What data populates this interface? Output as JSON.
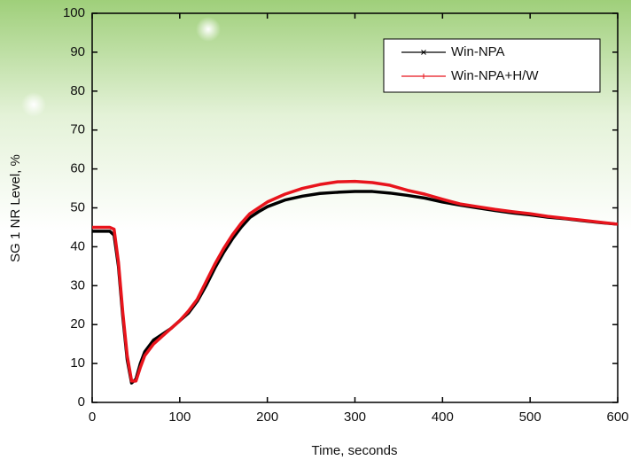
{
  "chart_data": {
    "type": "line",
    "x_label": "Time, seconds",
    "y_label": "SG 1 NR Level, %",
    "x": [
      0,
      10,
      20,
      25,
      30,
      35,
      40,
      45,
      50,
      55,
      60,
      70,
      80,
      90,
      100,
      110,
      120,
      130,
      140,
      150,
      160,
      170,
      180,
      190,
      200,
      220,
      240,
      260,
      280,
      300,
      320,
      340,
      360,
      380,
      400,
      420,
      440,
      460,
      480,
      500,
      520,
      540,
      560,
      580,
      600
    ],
    "series": [
      {
        "name": "Win-NPA",
        "color": "#000000",
        "marker": "x",
        "values": [
          44,
          44,
          44,
          43,
          35,
          22,
          11,
          5,
          6,
          10,
          13,
          16,
          17.5,
          19,
          21,
          23,
          26,
          30,
          34.5,
          38.5,
          42,
          45,
          47.5,
          49,
          50.3,
          52,
          53,
          53.7,
          54,
          54.2,
          54.2,
          53.8,
          53.2,
          52.5,
          51.5,
          50.7,
          50,
          49.3,
          48.7,
          48.2,
          47.6,
          47.2,
          46.7,
          46.2,
          45.8
        ]
      },
      {
        "name": "Win-NPA+H/W",
        "color": "#e8141c",
        "marker": "+",
        "values": [
          45,
          45,
          45,
          44.5,
          36,
          23,
          12,
          5.5,
          5.5,
          9,
          12,
          15,
          17,
          19,
          21,
          23.5,
          26.5,
          31,
          35.5,
          39.5,
          43,
          46,
          48.5,
          50,
          51.5,
          53.5,
          55,
          56,
          56.7,
          56.8,
          56.5,
          55.8,
          54.5,
          53.5,
          52.2,
          51,
          50.3,
          49.6,
          49,
          48.5,
          47.8,
          47.3,
          46.8,
          46.3,
          45.8
        ]
      }
    ],
    "xlim": [
      0,
      600
    ],
    "xticks": [
      0,
      100,
      200,
      300,
      400,
      500,
      600
    ],
    "ylim": [
      0,
      100
    ],
    "yticks": [
      0,
      10,
      20,
      30,
      40,
      50,
      60,
      70,
      80,
      90,
      100
    ],
    "legend": "upper right"
  }
}
